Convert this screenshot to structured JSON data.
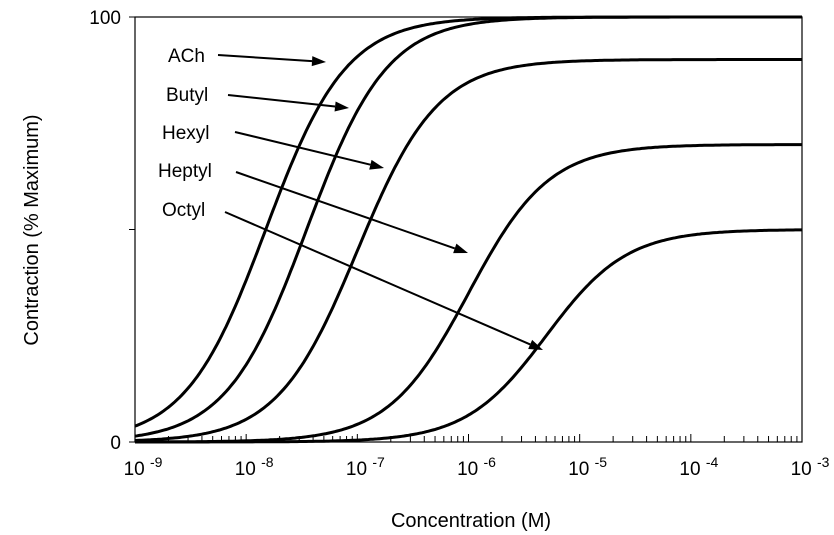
{
  "chart_data": {
    "type": "line",
    "title": "",
    "xlabel": "Concentration (M)",
    "ylabel": "Contraction (% Maximum)",
    "x_scale": "log",
    "xlim": [
      1e-09,
      0.001
    ],
    "ylim": [
      0,
      100
    ],
    "grid": false,
    "legend": "none",
    "x_tick_labels": [
      {
        "base": "10",
        "exp": "-9"
      },
      {
        "base": "10",
        "exp": "-8"
      },
      {
        "base": "10",
        "exp": "-7"
      },
      {
        "base": "10",
        "exp": "-6"
      },
      {
        "base": "10",
        "exp": "-5"
      },
      {
        "base": "10",
        "exp": "-4"
      },
      {
        "base": "10",
        "exp": "-3"
      }
    ],
    "y_tick_labels": [
      "0",
      "100"
    ],
    "series": [
      {
        "name": "ACh",
        "max": 100,
        "ec50": 1.5e-08,
        "hill": 1.2
      },
      {
        "name": "Butyl",
        "max": 100,
        "ec50": 3.5e-08,
        "hill": 1.2
      },
      {
        "name": "Hexyl",
        "max": 90,
        "ec50": 1e-07,
        "hill": 1.2
      },
      {
        "name": "Heptyl",
        "max": 70,
        "ec50": 1e-06,
        "hill": 1.2
      },
      {
        "name": "Octyl",
        "max": 50,
        "ec50": 5e-06,
        "hill": 1.2
      }
    ]
  }
}
